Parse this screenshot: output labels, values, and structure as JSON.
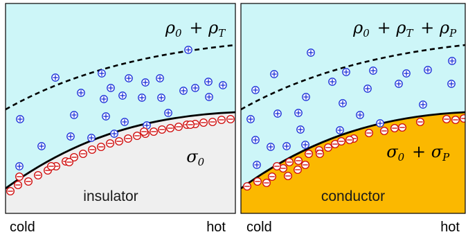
{
  "panels": [
    {
      "id": "insulator",
      "material_label": "insulator",
      "liquid_charge": {
        "base": "ρ",
        "base_sub": "0",
        "terms": [
          {
            "sym": "ρ",
            "sub": "T"
          }
        ]
      },
      "surface_charge": {
        "base": "σ",
        "base_sub": "0",
        "terms": []
      },
      "cold_label": "cold",
      "hot_label": "hot",
      "colors": {
        "liquid": "#cdf6f8",
        "solid": "#efefef"
      }
    },
    {
      "id": "conductor",
      "material_label": "conductor",
      "liquid_charge": {
        "base": "ρ",
        "base_sub": "0",
        "terms": [
          {
            "sym": "ρ",
            "sub": "T"
          },
          {
            "sym": "ρ",
            "sub": "P"
          }
        ]
      },
      "surface_charge": {
        "base": "σ",
        "base_sub": "0",
        "terms": [
          {
            "sym": "σ",
            "sub": "P"
          }
        ]
      },
      "cold_label": "cold",
      "hot_label": "hot",
      "colors": {
        "liquid": "#cdf6f8",
        "solid": "#fbb800"
      }
    }
  ],
  "colors": {
    "positive_ion": "#1a2fd8",
    "negative_ion": "#d01010"
  },
  "icons": {
    "positive_ion": "circled-plus-icon",
    "negative_ion": "circled-minus-icon"
  }
}
